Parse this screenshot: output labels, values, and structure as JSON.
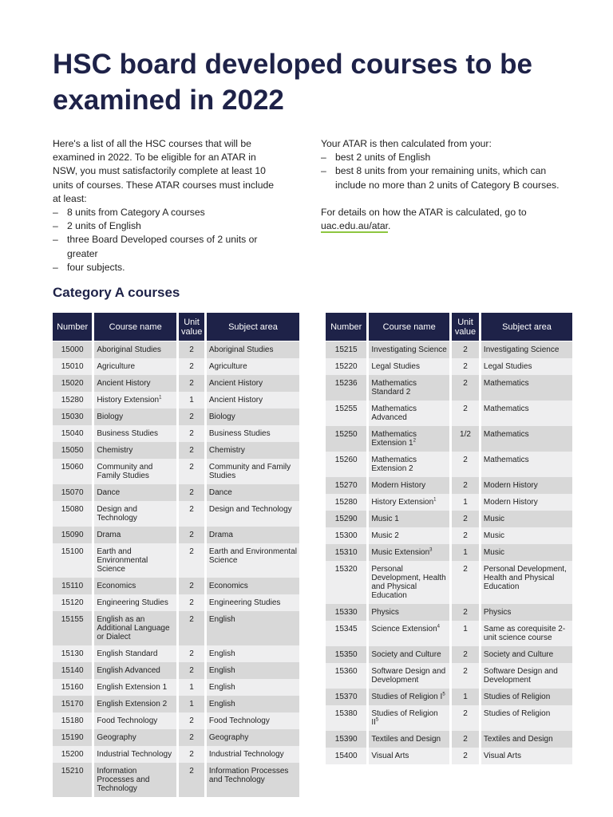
{
  "title": "HSC board developed courses to be examined in 2022",
  "intro": {
    "paragraph": "Here's a list of all the HSC courses that will be examined in 2022. To be eligible for an ATAR in NSW, you must satisfactorily complete at least 10 units of courses. These ATAR courses must include at least:",
    "items": [
      "8 units from Category A courses",
      "2 units of English",
      "three Board Developed courses of 2 units or greater",
      "four subjects."
    ]
  },
  "atar": {
    "paragraph": "Your ATAR is then calculated from your:",
    "items": [
      "best 2 units of English",
      "best 8 units from your remaining units, which can include no more than 2 units of Category B courses."
    ],
    "details": "For details on how the ATAR is calculated, go to ",
    "link": "uac.edu.au/atar",
    "after": "."
  },
  "section_title": "Category A courses",
  "headers": [
    "Number",
    "Course name",
    "Unit value",
    "Subject area"
  ],
  "left_rows": [
    {
      "n": "15000",
      "c": "Aboriginal Studies",
      "u": "2",
      "s": "Aboriginal Studies"
    },
    {
      "n": "15010",
      "c": "Agriculture",
      "u": "2",
      "s": "Agriculture"
    },
    {
      "n": "15020",
      "c": "Ancient History",
      "u": "2",
      "s": "Ancient History"
    },
    {
      "n": "15280",
      "c": "History Extension",
      "sup": "1",
      "u": "1",
      "s": "Ancient History"
    },
    {
      "n": "15030",
      "c": "Biology",
      "u": "2",
      "s": "Biology"
    },
    {
      "n": "15040",
      "c": "Business Studies",
      "u": "2",
      "s": "Business Studies"
    },
    {
      "n": "15050",
      "c": "Chemistry",
      "u": "2",
      "s": "Chemistry"
    },
    {
      "n": "15060",
      "c": "Community and Family Studies",
      "u": "2",
      "s": "Community and Family Studies"
    },
    {
      "n": "15070",
      "c": "Dance",
      "u": "2",
      "s": "Dance"
    },
    {
      "n": "15080",
      "c": "Design and Technology",
      "u": "2",
      "s": "Design and Technology"
    },
    {
      "n": "15090",
      "c": "Drama",
      "u": "2",
      "s": "Drama"
    },
    {
      "n": "15100",
      "c": "Earth and Environmental Science",
      "u": "2",
      "s": "Earth and Environmental Science"
    },
    {
      "n": "15110",
      "c": "Economics",
      "u": "2",
      "s": "Economics"
    },
    {
      "n": "15120",
      "c": "Engineering Studies",
      "u": "2",
      "s": "Engineering Studies"
    },
    {
      "n": "15155",
      "c": "English as an Additional Language or Dialect",
      "u": "2",
      "s": "English"
    },
    {
      "n": "15130",
      "c": "English Standard",
      "u": "2",
      "s": "English"
    },
    {
      "n": "15140",
      "c": "English Advanced",
      "u": "2",
      "s": "English"
    },
    {
      "n": "15160",
      "c": "English Extension 1",
      "u": "1",
      "s": "English"
    },
    {
      "n": "15170",
      "c": "English Extension 2",
      "u": "1",
      "s": "English"
    },
    {
      "n": "15180",
      "c": "Food Technology",
      "u": "2",
      "s": "Food Technology"
    },
    {
      "n": "15190",
      "c": "Geography",
      "u": "2",
      "s": "Geography"
    },
    {
      "n": "15200",
      "c": "Industrial Technology",
      "u": "2",
      "s": "Industrial Technology"
    },
    {
      "n": "15210",
      "c": "Information Processes and Technology",
      "u": "2",
      "s": "Information Processes and Technology"
    }
  ],
  "right_rows": [
    {
      "n": "15215",
      "c": "Investigating Science",
      "u": "2",
      "s": "Investigating Science"
    },
    {
      "n": "15220",
      "c": "Legal Studies",
      "u": "2",
      "s": "Legal Studies"
    },
    {
      "n": "15236",
      "c": "Mathematics Standard 2",
      "u": "2",
      "s": "Mathematics"
    },
    {
      "n": "15255",
      "c": "Mathematics Advanced",
      "u": "2",
      "s": "Mathematics"
    },
    {
      "n": "15250",
      "c": "Mathematics Extension 1",
      "sup": "2",
      "u": "1/2",
      "s": "Mathematics"
    },
    {
      "n": "15260",
      "c": "Mathematics Extension 2",
      "u": "2",
      "s": "Mathematics"
    },
    {
      "n": "15270",
      "c": "Modern History",
      "u": "2",
      "s": "Modern History"
    },
    {
      "n": "15280",
      "c": "History Extension",
      "sup": "1",
      "u": "1",
      "s": "Modern History"
    },
    {
      "n": "15290",
      "c": "Music 1",
      "u": "2",
      "s": "Music"
    },
    {
      "n": "15300",
      "c": "Music 2",
      "u": "2",
      "s": "Music"
    },
    {
      "n": "15310",
      "c": "Music Extension",
      "sup": "3",
      "u": "1",
      "s": "Music"
    },
    {
      "n": "15320",
      "c": "Personal Development, Health and Physical Education",
      "u": "2",
      "s": "Personal Development, Health and Physical Education"
    },
    {
      "n": "15330",
      "c": "Physics",
      "u": "2",
      "s": "Physics"
    },
    {
      "n": "15345",
      "c": "Science Extension",
      "sup": "4",
      "u": "1",
      "s": "Same as corequisite 2-unit science course"
    },
    {
      "n": "15350",
      "c": "Society and Culture",
      "u": "2",
      "s": "Society and Culture"
    },
    {
      "n": "15360",
      "c": "Software Design and Development",
      "u": "2",
      "s": "Software Design and Development"
    },
    {
      "n": "15370",
      "c": "Studies of Religion I",
      "sup": "5",
      "u": "1",
      "s": "Studies of Religion"
    },
    {
      "n": "15380",
      "c": "Studies of Religion II",
      "sup": "5",
      "u": "2",
      "s": "Studies of Religion"
    },
    {
      "n": "15390",
      "c": "Textiles and Design",
      "u": "2",
      "s": "Textiles and Design"
    },
    {
      "n": "15400",
      "c": "Visual Arts",
      "u": "2",
      "s": "Visual Arts"
    }
  ]
}
